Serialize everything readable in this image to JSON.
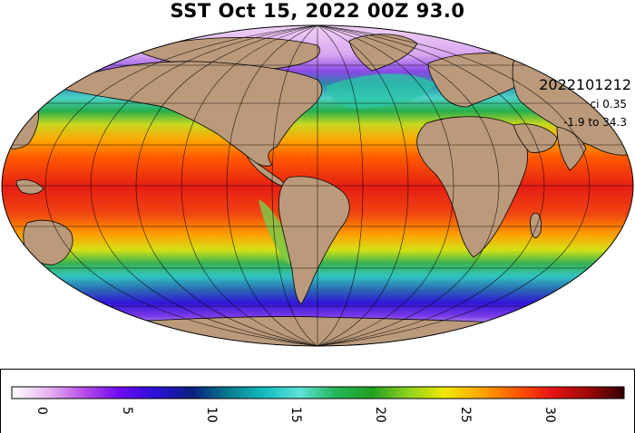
{
  "title": "SST Oct 15, 2022 00Z 93.0",
  "annotations": {
    "date_code": "2022101212",
    "contour_interval": "ci 0.35",
    "value_range": "-1.9 to 34.3"
  },
  "colorbar": {
    "min": -1.9,
    "max": 34.3,
    "ticks": [
      "0",
      "5",
      "10",
      "15",
      "20",
      "25",
      "30"
    ],
    "tick_values": [
      0,
      5,
      10,
      15,
      20,
      25,
      30
    ],
    "colors": [
      "#ffffff",
      "#e8b6f2",
      "#b84de6",
      "#6e0af0",
      "#2a10d6",
      "#0a2080",
      "#0a7a8e",
      "#12bcc0",
      "#5ee2d8",
      "#25b65a",
      "#20a020",
      "#8ed21e",
      "#f0e800",
      "#ffa800",
      "#ff5a00",
      "#e61414",
      "#a00808",
      "#300000"
    ]
  },
  "colors": {
    "land": "#bb9a7b",
    "polar_ice": "#f4ddf6",
    "graticule": "#000000"
  }
}
